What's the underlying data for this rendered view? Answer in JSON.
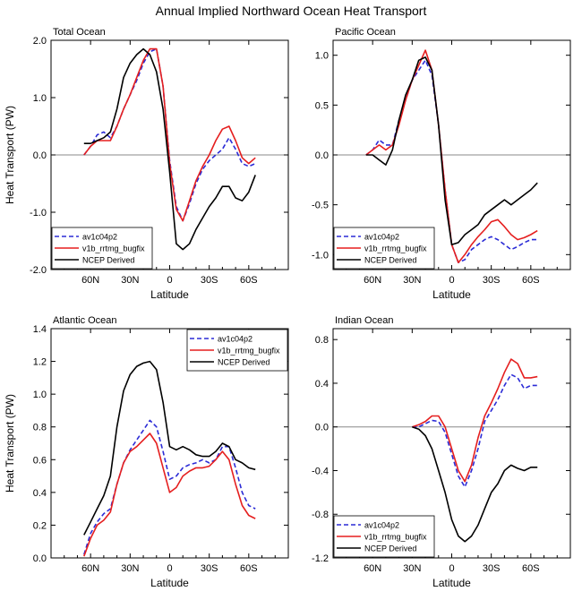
{
  "figure": {
    "title": "Annual Implied Northward Ocean Heat Transport",
    "legend_labels": [
      "av1c04p2",
      "v1b_rrtmg_bugfix",
      "NCEP Derived"
    ]
  },
  "chart_data": [
    {
      "type": "line",
      "title": "Total Ocean",
      "xlabel": "Latitude",
      "ylabel": "Heat Transport (PW)",
      "xlim": [
        90,
        -90
      ],
      "ylim": [
        -2.0,
        2.0
      ],
      "xticks": [
        60,
        30,
        0,
        -30,
        -60
      ],
      "xtick_labels": [
        "60N",
        "30N",
        "0",
        "30S",
        "60S"
      ],
      "yticks": [
        -2.0,
        -1.0,
        0.0,
        1.0,
        2.0
      ],
      "ytick_labels": [
        "-2.0",
        "-1.0",
        "0.0",
        "1.0",
        "2.0"
      ],
      "zero_line": true,
      "legend_position": "bottom-left",
      "series": [
        {
          "name": "av1c04p2",
          "color": "#2b2bd6",
          "dash": true,
          "x": [
            65,
            60,
            55,
            50,
            45,
            40,
            35,
            30,
            25,
            20,
            15,
            10,
            5,
            0,
            -5,
            -10,
            -15,
            -20,
            -25,
            -30,
            -35,
            -40,
            -45,
            -50,
            -55,
            -60,
            -65
          ],
          "y": [
            0.0,
            0.15,
            0.35,
            0.4,
            0.3,
            0.5,
            0.8,
            1.05,
            1.3,
            1.6,
            1.8,
            1.85,
            1.2,
            -0.1,
            -0.9,
            -1.15,
            -0.85,
            -0.5,
            -0.25,
            -0.1,
            0.0,
            0.1,
            0.3,
            0.1,
            -0.15,
            -0.2,
            -0.15
          ]
        },
        {
          "name": "v1b_rrtmg_bugfix",
          "color": "#e51f1f",
          "dash": false,
          "x": [
            65,
            60,
            55,
            50,
            45,
            40,
            35,
            30,
            25,
            20,
            15,
            10,
            5,
            0,
            -5,
            -10,
            -15,
            -20,
            -25,
            -30,
            -35,
            -40,
            -45,
            -50,
            -55,
            -60,
            -65
          ],
          "y": [
            0.0,
            0.15,
            0.25,
            0.25,
            0.25,
            0.5,
            0.8,
            1.05,
            1.35,
            1.65,
            1.85,
            1.85,
            1.2,
            -0.15,
            -0.95,
            -1.15,
            -0.8,
            -0.45,
            -0.2,
            0.0,
            0.25,
            0.45,
            0.5,
            0.25,
            -0.05,
            -0.15,
            -0.05
          ]
        },
        {
          "name": "NCEP Derived",
          "color": "#000000",
          "dash": false,
          "x": [
            65,
            60,
            55,
            50,
            45,
            40,
            35,
            30,
            25,
            20,
            15,
            10,
            5,
            0,
            -5,
            -10,
            -15,
            -20,
            -25,
            -30,
            -35,
            -40,
            -45,
            -50,
            -55,
            -60,
            -65
          ],
          "y": [
            0.2,
            0.2,
            0.25,
            0.3,
            0.4,
            0.8,
            1.35,
            1.6,
            1.75,
            1.85,
            1.75,
            1.45,
            0.8,
            -0.3,
            -1.55,
            -1.65,
            -1.55,
            -1.3,
            -1.1,
            -0.9,
            -0.75,
            -0.55,
            -0.55,
            -0.75,
            -0.8,
            -0.65,
            -0.35
          ]
        }
      ]
    },
    {
      "type": "line",
      "title": "Pacific Ocean",
      "xlabel": "Latitude",
      "ylabel": "",
      "xlim": [
        90,
        -90
      ],
      "ylim": [
        -1.15,
        1.15
      ],
      "xticks": [
        60,
        30,
        0,
        -30,
        -60
      ],
      "xtick_labels": [
        "60N",
        "30N",
        "0",
        "30S",
        "60S"
      ],
      "yticks": [
        -1.0,
        -0.5,
        0.0,
        0.5,
        1.0
      ],
      "ytick_labels": [
        "-1.0",
        "-0.5",
        "0.0",
        "0.5",
        "1.0"
      ],
      "zero_line": true,
      "legend_position": "bottom-left",
      "series": [
        {
          "name": "av1c04p2",
          "color": "#2b2bd6",
          "dash": true,
          "x": [
            65,
            60,
            55,
            50,
            45,
            40,
            35,
            30,
            25,
            20,
            15,
            10,
            5,
            0,
            -5,
            -10,
            -15,
            -20,
            -25,
            -30,
            -35,
            -40,
            -45,
            -50,
            -55,
            -60,
            -65
          ],
          "y": [
            0.0,
            0.05,
            0.15,
            0.1,
            0.1,
            0.35,
            0.55,
            0.75,
            0.85,
            0.95,
            0.8,
            0.3,
            -0.35,
            -0.9,
            -1.08,
            -1.05,
            -0.95,
            -0.9,
            -0.85,
            -0.82,
            -0.85,
            -0.9,
            -0.95,
            -0.92,
            -0.88,
            -0.85,
            -0.85
          ]
        },
        {
          "name": "v1b_rrtmg_bugfix",
          "color": "#e51f1f",
          "dash": false,
          "x": [
            65,
            60,
            55,
            50,
            45,
            40,
            35,
            30,
            25,
            20,
            15,
            10,
            5,
            0,
            -5,
            -10,
            -15,
            -20,
            -25,
            -30,
            -35,
            -40,
            -45,
            -50,
            -55,
            -60,
            -65
          ],
          "y": [
            0.0,
            0.05,
            0.1,
            0.05,
            0.1,
            0.3,
            0.55,
            0.75,
            0.9,
            1.05,
            0.85,
            0.3,
            -0.35,
            -0.9,
            -1.08,
            -1.0,
            -0.9,
            -0.82,
            -0.75,
            -0.67,
            -0.65,
            -0.72,
            -0.8,
            -0.85,
            -0.83,
            -0.8,
            -0.76
          ]
        },
        {
          "name": "NCEP Derived",
          "color": "#000000",
          "dash": false,
          "x": [
            65,
            60,
            55,
            50,
            45,
            40,
            35,
            30,
            25,
            20,
            15,
            10,
            5,
            0,
            -5,
            -10,
            -15,
            -20,
            -25,
            -30,
            -35,
            -40,
            -45,
            -50,
            -55,
            -60,
            -65
          ],
          "y": [
            0.0,
            0.0,
            -0.05,
            -0.1,
            0.05,
            0.35,
            0.6,
            0.75,
            0.95,
            0.98,
            0.85,
            0.3,
            -0.45,
            -0.9,
            -0.88,
            -0.8,
            -0.75,
            -0.7,
            -0.6,
            -0.55,
            -0.5,
            -0.45,
            -0.5,
            -0.45,
            -0.4,
            -0.35,
            -0.28
          ]
        }
      ]
    },
    {
      "type": "line",
      "title": "Atlantic Ocean",
      "xlabel": "Latitude",
      "ylabel": "Heat Transport (PW)",
      "xlim": [
        90,
        -90
      ],
      "ylim": [
        0.0,
        1.4
      ],
      "xticks": [
        60,
        30,
        0,
        -30,
        -60
      ],
      "xtick_labels": [
        "60N",
        "30N",
        "0",
        "30S",
        "60S"
      ],
      "yticks": [
        0.0,
        0.2,
        0.4,
        0.6,
        0.8,
        1.0,
        1.2,
        1.4
      ],
      "ytick_labels": [
        "0.0",
        "0.2",
        "0.4",
        "0.6",
        "0.8",
        "1.0",
        "1.2",
        "1.4"
      ],
      "zero_line": false,
      "legend_position": "top-right",
      "series": [
        {
          "name": "av1c04p2",
          "color": "#2b2bd6",
          "dash": true,
          "x": [
            65,
            60,
            55,
            50,
            45,
            40,
            35,
            30,
            25,
            20,
            15,
            10,
            5,
            0,
            -5,
            -10,
            -15,
            -20,
            -25,
            -30,
            -35,
            -40,
            -45,
            -50,
            -55,
            -60,
            -65
          ],
          "y": [
            0.02,
            0.15,
            0.22,
            0.27,
            0.3,
            0.45,
            0.58,
            0.66,
            0.72,
            0.78,
            0.84,
            0.8,
            0.65,
            0.48,
            0.5,
            0.55,
            0.57,
            0.58,
            0.6,
            0.58,
            0.6,
            0.68,
            0.68,
            0.55,
            0.4,
            0.32,
            0.3
          ]
        },
        {
          "name": "v1b_rrtmg_bugfix",
          "color": "#e51f1f",
          "dash": false,
          "x": [
            65,
            60,
            55,
            50,
            45,
            40,
            35,
            30,
            25,
            20,
            15,
            10,
            5,
            0,
            -5,
            -10,
            -15,
            -20,
            -25,
            -30,
            -35,
            -40,
            -45,
            -50,
            -55,
            -60,
            -65
          ],
          "y": [
            0.01,
            0.12,
            0.2,
            0.23,
            0.28,
            0.45,
            0.58,
            0.65,
            0.68,
            0.72,
            0.76,
            0.7,
            0.55,
            0.4,
            0.43,
            0.5,
            0.53,
            0.55,
            0.55,
            0.56,
            0.6,
            0.65,
            0.6,
            0.45,
            0.32,
            0.26,
            0.24
          ]
        },
        {
          "name": "NCEP Derived",
          "color": "#000000",
          "dash": false,
          "x": [
            65,
            60,
            55,
            50,
            45,
            40,
            35,
            30,
            25,
            20,
            15,
            10,
            5,
            0,
            -5,
            -10,
            -15,
            -20,
            -25,
            -30,
            -35,
            -40,
            -45,
            -50,
            -55,
            -60,
            -65
          ],
          "y": [
            0.14,
            0.22,
            0.3,
            0.38,
            0.5,
            0.8,
            1.02,
            1.12,
            1.17,
            1.19,
            1.2,
            1.15,
            0.95,
            0.68,
            0.66,
            0.68,
            0.66,
            0.63,
            0.62,
            0.62,
            0.65,
            0.7,
            0.68,
            0.6,
            0.58,
            0.55,
            0.54
          ]
        }
      ]
    },
    {
      "type": "line",
      "title": "Indian Ocean",
      "xlabel": "Latitude",
      "ylabel": "",
      "xlim": [
        90,
        -90
      ],
      "ylim": [
        -1.2,
        0.9
      ],
      "xticks": [
        60,
        30,
        0,
        -30,
        -60
      ],
      "xtick_labels": [
        "60N",
        "30N",
        "0",
        "30S",
        "60S"
      ],
      "yticks": [
        -1.2,
        -0.8,
        -0.4,
        0.0,
        0.4,
        0.8
      ],
      "ytick_labels": [
        "-1.2",
        "-0.8",
        "-0.4",
        "0.0",
        "0.4",
        "0.8"
      ],
      "zero_line": true,
      "legend_position": "bottom-left",
      "series": [
        {
          "name": "av1c04p2",
          "color": "#2b2bd6",
          "dash": true,
          "x": [
            30,
            25,
            20,
            15,
            10,
            5,
            0,
            -5,
            -10,
            -15,
            -20,
            -25,
            -30,
            -35,
            -40,
            -45,
            -50,
            -55,
            -60,
            -65
          ],
          "y": [
            0.0,
            0.0,
            0.03,
            0.06,
            0.05,
            -0.05,
            -0.25,
            -0.45,
            -0.55,
            -0.4,
            -0.2,
            0.05,
            0.15,
            0.25,
            0.38,
            0.48,
            0.45,
            0.35,
            0.38,
            0.38
          ]
        },
        {
          "name": "v1b_rrtmg_bugfix",
          "color": "#e51f1f",
          "dash": false,
          "x": [
            30,
            25,
            20,
            15,
            10,
            5,
            0,
            -5,
            -10,
            -15,
            -20,
            -25,
            -30,
            -35,
            -40,
            -45,
            -50,
            -55,
            -60,
            -65
          ],
          "y": [
            0.0,
            0.02,
            0.05,
            0.1,
            0.1,
            0.0,
            -0.2,
            -0.4,
            -0.5,
            -0.35,
            -0.1,
            0.1,
            0.22,
            0.35,
            0.5,
            0.62,
            0.58,
            0.45,
            0.45,
            0.46
          ]
        },
        {
          "name": "NCEP Derived",
          "color": "#000000",
          "dash": false,
          "x": [
            30,
            25,
            20,
            15,
            10,
            5,
            0,
            -5,
            -10,
            -15,
            -20,
            -25,
            -30,
            -35,
            -40,
            -45,
            -50,
            -55,
            -60,
            -65
          ],
          "y": [
            0.0,
            -0.02,
            -0.08,
            -0.2,
            -0.4,
            -0.6,
            -0.85,
            -1.0,
            -1.05,
            -1.0,
            -0.9,
            -0.75,
            -0.6,
            -0.52,
            -0.4,
            -0.35,
            -0.38,
            -0.4,
            -0.37,
            -0.37
          ]
        }
      ]
    }
  ]
}
